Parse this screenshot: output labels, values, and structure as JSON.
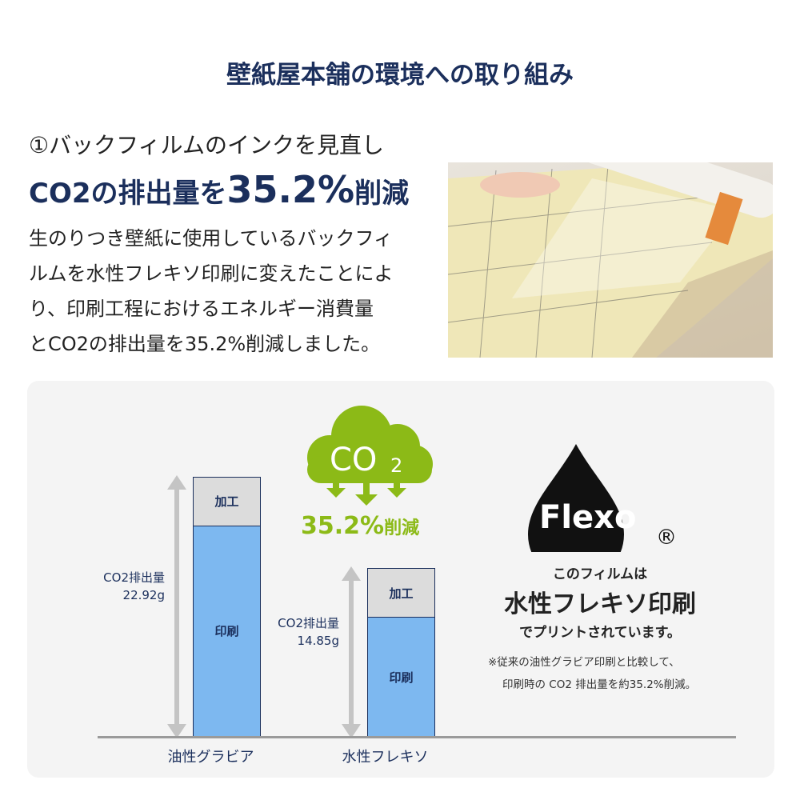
{
  "header": {
    "title": "壁紙屋本舗の環境への取り組み"
  },
  "intro": {
    "point": "①バックフィルムのインクを見直し",
    "headline_pre": "CO2の排出量を",
    "headline_value": "35.2%",
    "headline_post": "削減",
    "lines": [
      "生のりつき壁紙に使用しているバックフィ",
      "ルムを水性フレキソ印刷に変えたことによ",
      "り、印刷工程におけるエネルギー消費量",
      "とCO2の排出量を35.2%削減しました。"
    ]
  },
  "badge": {
    "cloud_text": "CO",
    "cloud_sub": "2",
    "reduction_value": "35.2%",
    "reduction_label": "削減",
    "color": "#8cba17"
  },
  "flexo": {
    "logo_text": "Flexo",
    "registered": "®",
    "line1": "このフィルムは",
    "line2": "水性フレキソ印刷",
    "line3": "でプリントされています。",
    "note1": "※従来の油性グラビア印刷と比較して、",
    "note2": "印刷時の CO2 排出量を約35.2%削減。"
  },
  "chart_data": {
    "type": "bar",
    "stacked": true,
    "categories": [
      "油性グラビア",
      "水性フレキソ"
    ],
    "series": [
      {
        "name": "印刷",
        "values": [
          18.62,
          10.55
        ],
        "color": "#7db8f0"
      },
      {
        "name": "加工",
        "values": [
          4.3,
          4.3
        ],
        "color": "#dcdcdc"
      }
    ],
    "totals": [
      22.92,
      14.85
    ],
    "total_labels": [
      {
        "label": "CO2排出量",
        "value": "22.92g"
      },
      {
        "label": "CO2排出量",
        "value": "14.85g"
      }
    ],
    "ylim": [
      0,
      22.92
    ],
    "grid": false
  }
}
